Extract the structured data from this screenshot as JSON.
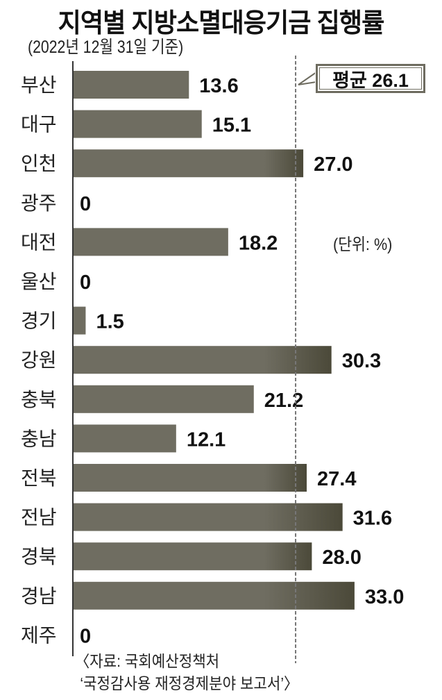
{
  "chart_data": {
    "type": "bar",
    "orientation": "horizontal",
    "title": "지역별 지방소멸대응기금 집행률",
    "subtitle": "(2022년 12월 31일 기준)",
    "unit_note": "(단위: %)",
    "categories": [
      "부산",
      "대구",
      "인천",
      "광주",
      "대전",
      "울산",
      "경기",
      "강원",
      "충북",
      "충남",
      "전북",
      "전남",
      "경북",
      "경남",
      "제주"
    ],
    "values": [
      13.6,
      15.1,
      27.0,
      0,
      18.2,
      0,
      1.5,
      30.3,
      21.2,
      12.1,
      27.4,
      31.6,
      28.0,
      33.0,
      0
    ],
    "value_labels": [
      "13.6",
      "15.1",
      "27.0",
      "0",
      "18.2",
      "0",
      "1.5",
      "30.3",
      "21.2",
      "12.1",
      "27.4",
      "31.6",
      "28.0",
      "33.0",
      "0"
    ],
    "average": {
      "label": "평균 26.1",
      "value": 26.1
    },
    "xlim": [
      0,
      35
    ],
    "grid": false,
    "colors": {
      "bar": "#6f6d61",
      "bar_above_average_end": "#4b4939",
      "average_line": "#777777"
    }
  },
  "source": {
    "line1": "〈자료: 국회예산정책처",
    "line2": "‘국정감사용 재정경제분야 보고서’〉"
  }
}
